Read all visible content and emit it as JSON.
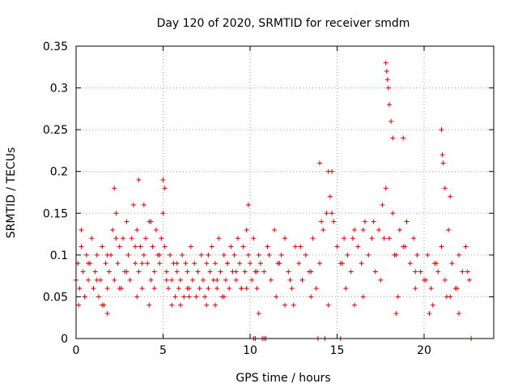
{
  "chart_data": {
    "type": "scatter",
    "title": "Day 120 of 2020, SRMTID for receiver smdm",
    "xlabel": "GPS time / hours",
    "ylabel": "SRMTID / TECUs",
    "xlim": [
      0,
      24
    ],
    "ylim": [
      0,
      0.35
    ],
    "x_ticks": [
      0,
      5,
      10,
      15,
      20
    ],
    "x_tick_labels": [
      "0",
      "5",
      "10",
      "15",
      "20"
    ],
    "y_ticks": [
      0,
      0.05,
      0.1,
      0.15,
      0.2,
      0.25,
      0.3,
      0.35
    ],
    "y_tick_labels": [
      "0",
      "0.05",
      "0.1",
      "0.15",
      "0.2",
      "0.25",
      "0.3",
      "0.35"
    ],
    "grid": true,
    "marker": "+",
    "marker_color": "#dd0000",
    "series": [
      {
        "name": "SRMTID",
        "x": [
          0.0,
          0.1,
          0.2,
          0.3,
          0.4,
          0.5,
          0.6,
          0.7,
          0.8,
          0.9,
          1.0,
          1.1,
          1.2,
          1.3,
          1.4,
          1.5,
          1.6,
          1.7,
          1.8,
          1.9,
          2.0,
          2.1,
          2.2,
          2.3,
          2.4,
          2.5,
          2.6,
          2.7,
          2.8,
          2.9,
          3.0,
          3.1,
          3.2,
          3.3,
          3.4,
          3.5,
          3.6,
          3.7,
          3.8,
          3.9,
          4.0,
          4.1,
          4.2,
          4.3,
          4.4,
          4.5,
          4.6,
          4.7,
          4.8,
          4.9,
          5.0,
          5.1,
          5.2,
          5.3,
          5.4,
          5.5,
          5.6,
          5.7,
          5.8,
          5.9,
          6.0,
          6.1,
          6.2,
          6.3,
          6.4,
          6.5,
          6.6,
          6.7,
          6.8,
          6.9,
          7.0,
          7.1,
          7.2,
          7.3,
          7.4,
          7.5,
          7.6,
          7.7,
          7.8,
          7.9,
          8.0,
          8.1,
          8.2,
          8.3,
          8.4,
          8.5,
          8.6,
          8.7,
          8.8,
          8.9,
          9.0,
          9.1,
          9.2,
          9.3,
          9.4,
          9.5,
          9.6,
          9.7,
          9.8,
          9.9,
          10.0,
          10.1,
          10.2,
          10.3,
          10.4,
          10.5,
          10.6,
          10.8,
          11.0,
          11.2,
          11.4,
          11.6,
          11.8,
          12.0,
          12.2,
          12.4,
          12.6,
          12.8,
          13.0,
          13.2,
          13.4,
          13.6,
          13.8,
          14.0,
          14.2,
          14.4,
          14.6,
          14.8,
          15.0,
          15.2,
          15.4,
          15.6,
          15.8,
          16.0,
          16.2,
          16.4,
          16.6,
          16.8,
          17.0,
          17.2,
          17.4,
          17.6,
          17.8,
          18.0,
          18.2,
          18.4,
          18.6,
          18.8,
          19.0,
          19.2,
          19.4,
          19.6,
          19.8,
          20.0,
          20.2,
          20.4,
          20.6,
          20.8,
          21.0,
          21.2,
          21.4,
          21.6,
          21.8,
          22.0,
          22.2,
          22.4,
          22.6,
          0.3,
          0.7,
          1.2,
          1.8,
          2.3,
          2.9,
          3.4,
          3.8,
          4.3,
          4.8,
          5.2,
          5.8,
          6.4,
          7.0,
          7.6,
          8.1,
          8.7,
          9.2,
          9.8,
          10.4,
          11.1,
          11.7,
          12.3,
          12.9,
          13.5,
          14.1,
          14.7,
          15.3,
          15.9,
          16.5,
          17.1,
          17.7,
          18.3,
          18.9,
          19.5,
          20.1,
          20.7,
          21.3,
          21.9,
          22.5,
          0.5,
          1.5,
          2.5,
          3.5,
          4.5,
          5.5,
          6.5,
          7.5,
          8.5,
          9.5,
          11.5,
          12.5,
          13.5,
          14.5,
          15.5,
          16.5,
          17.5,
          18.5,
          19.5,
          20.5,
          21.5,
          2.2,
          3.6,
          3.9,
          5.0,
          5.1,
          9.9,
          14.0,
          14.5,
          14.7,
          17.8,
          17.85,
          17.9,
          17.95,
          18.0,
          18.1,
          18.2,
          18.8,
          21.0,
          21.05,
          21.1,
          21.2,
          21.5,
          0.15,
          1.8,
          4.2,
          6.0,
          8.0,
          10.5,
          12.0,
          16.0,
          18.4,
          20.3,
          22.0,
          10.2,
          10.3,
          10.7,
          10.8,
          10.9,
          13.9,
          14.3,
          15.2,
          22.7
        ],
        "y": [
          0.07,
          0.09,
          0.06,
          0.11,
          0.08,
          0.05,
          0.1,
          0.07,
          0.09,
          0.12,
          0.06,
          0.08,
          0.1,
          0.05,
          0.07,
          0.11,
          0.04,
          0.09,
          0.06,
          0.08,
          0.1,
          0.13,
          0.07,
          0.15,
          0.09,
          0.11,
          0.06,
          0.12,
          0.08,
          0.14,
          0.1,
          0.07,
          0.12,
          0.16,
          0.09,
          0.13,
          0.08,
          0.11,
          0.06,
          0.1,
          0.12,
          0.09,
          0.14,
          0.07,
          0.11,
          0.08,
          0.13,
          0.1,
          0.09,
          0.12,
          0.15,
          0.11,
          0.08,
          0.06,
          0.1,
          0.07,
          0.09,
          0.05,
          0.08,
          0.06,
          0.07,
          0.1,
          0.05,
          0.09,
          0.08,
          0.06,
          0.11,
          0.07,
          0.09,
          0.05,
          0.08,
          0.06,
          0.1,
          0.07,
          0.05,
          0.09,
          0.06,
          0.08,
          0.11,
          0.07,
          0.09,
          0.06,
          0.12,
          0.08,
          0.05,
          0.1,
          0.07,
          0.09,
          0.06,
          0.11,
          0.08,
          0.1,
          0.07,
          0.12,
          0.09,
          0.06,
          0.11,
          0.08,
          0.13,
          0.1,
          0.09,
          0.07,
          0.12,
          0.08,
          0.06,
          0.1,
          0.09,
          0.08,
          0.11,
          0.07,
          0.13,
          0.09,
          0.1,
          0.12,
          0.08,
          0.06,
          0.11,
          0.09,
          0.07,
          0.1,
          0.08,
          0.12,
          0.06,
          0.09,
          0.13,
          0.15,
          0.17,
          0.14,
          0.11,
          0.09,
          0.12,
          0.1,
          0.08,
          0.13,
          0.11,
          0.09,
          0.14,
          0.1,
          0.12,
          0.08,
          0.13,
          0.16,
          0.18,
          0.12,
          0.15,
          0.1,
          0.13,
          0.11,
          0.14,
          0.09,
          0.12,
          0.1,
          0.08,
          0.07,
          0.1,
          0.06,
          0.09,
          0.08,
          0.11,
          0.07,
          0.13,
          0.09,
          0.06,
          0.1,
          0.08,
          0.11,
          0.07,
          0.13,
          0.09,
          0.07,
          0.1,
          0.12,
          0.08,
          0.11,
          0.09,
          0.14,
          0.1,
          0.07,
          0.09,
          0.06,
          0.08,
          0.1,
          0.07,
          0.09,
          0.08,
          0.06,
          0.08,
          0.1,
          0.09,
          0.07,
          0.11,
          0.08,
          0.14,
          0.15,
          0.09,
          0.12,
          0.13,
          0.14,
          0.12,
          0.1,
          0.11,
          0.08,
          0.07,
          0.09,
          0.05,
          0.06,
          0.08,
          0.05,
          0.04,
          0.06,
          0.05,
          0.06,
          0.04,
          0.05,
          0.04,
          0.05,
          0.06,
          0.05,
          0.04,
          0.05,
          0.04,
          0.06,
          0.05,
          0.07,
          0.05,
          0.06,
          0.04,
          0.05,
          0.18,
          0.19,
          0.16,
          0.19,
          0.18,
          0.16,
          0.21,
          0.2,
          0.2,
          0.33,
          0.32,
          0.31,
          0.3,
          0.28,
          0.26,
          0.24,
          0.24,
          0.25,
          0.22,
          0.21,
          0.18,
          0.17,
          0.04,
          0.03,
          0.04,
          0.04,
          0.04,
          0.03,
          0.04,
          0.04,
          0.03,
          0.03,
          0.03,
          0.0,
          0.0,
          0.0,
          0.0,
          0.0,
          0.0,
          0.0,
          0.0,
          0.0
        ]
      }
    ]
  }
}
